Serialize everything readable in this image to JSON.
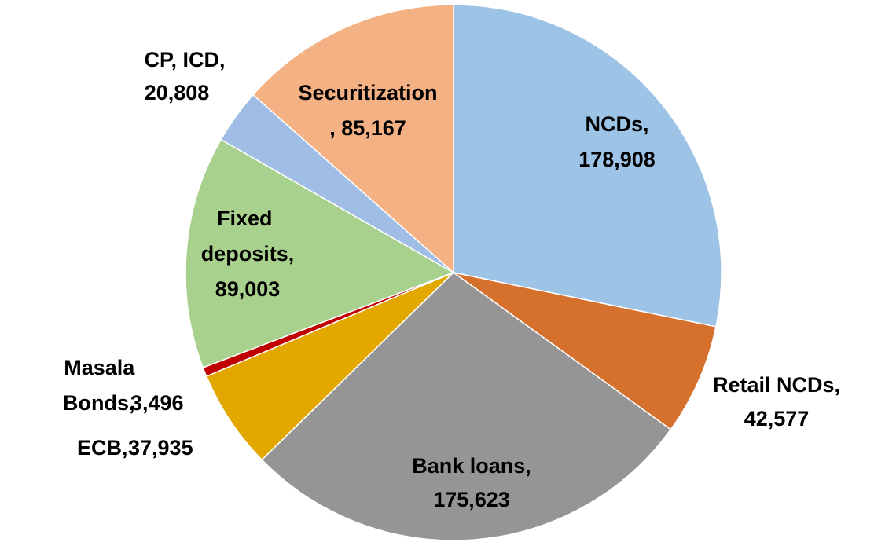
{
  "chart_data": {
    "type": "pie",
    "categories": [
      "NCDs,",
      "Retail NCDs,",
      "Bank loans,",
      "ECB,",
      "Masala Bonds,",
      "Fixed deposits,",
      "CP, ICD,",
      "Securitization"
    ],
    "values": [
      178908,
      42577,
      175623,
      37935,
      3496,
      89003,
      20808,
      85167
    ],
    "value_labels": [
      "178,908",
      "42,577",
      "175,623",
      "37,935",
      "3,496",
      "89,003",
      "20,808",
      ", 85,167"
    ],
    "colors": [
      "#9dc3e6",
      "#d5702d",
      "#959595",
      "#e2a800",
      "#c00000",
      "#a9d18e",
      "#9fbde5",
      "#f4b183"
    ]
  }
}
